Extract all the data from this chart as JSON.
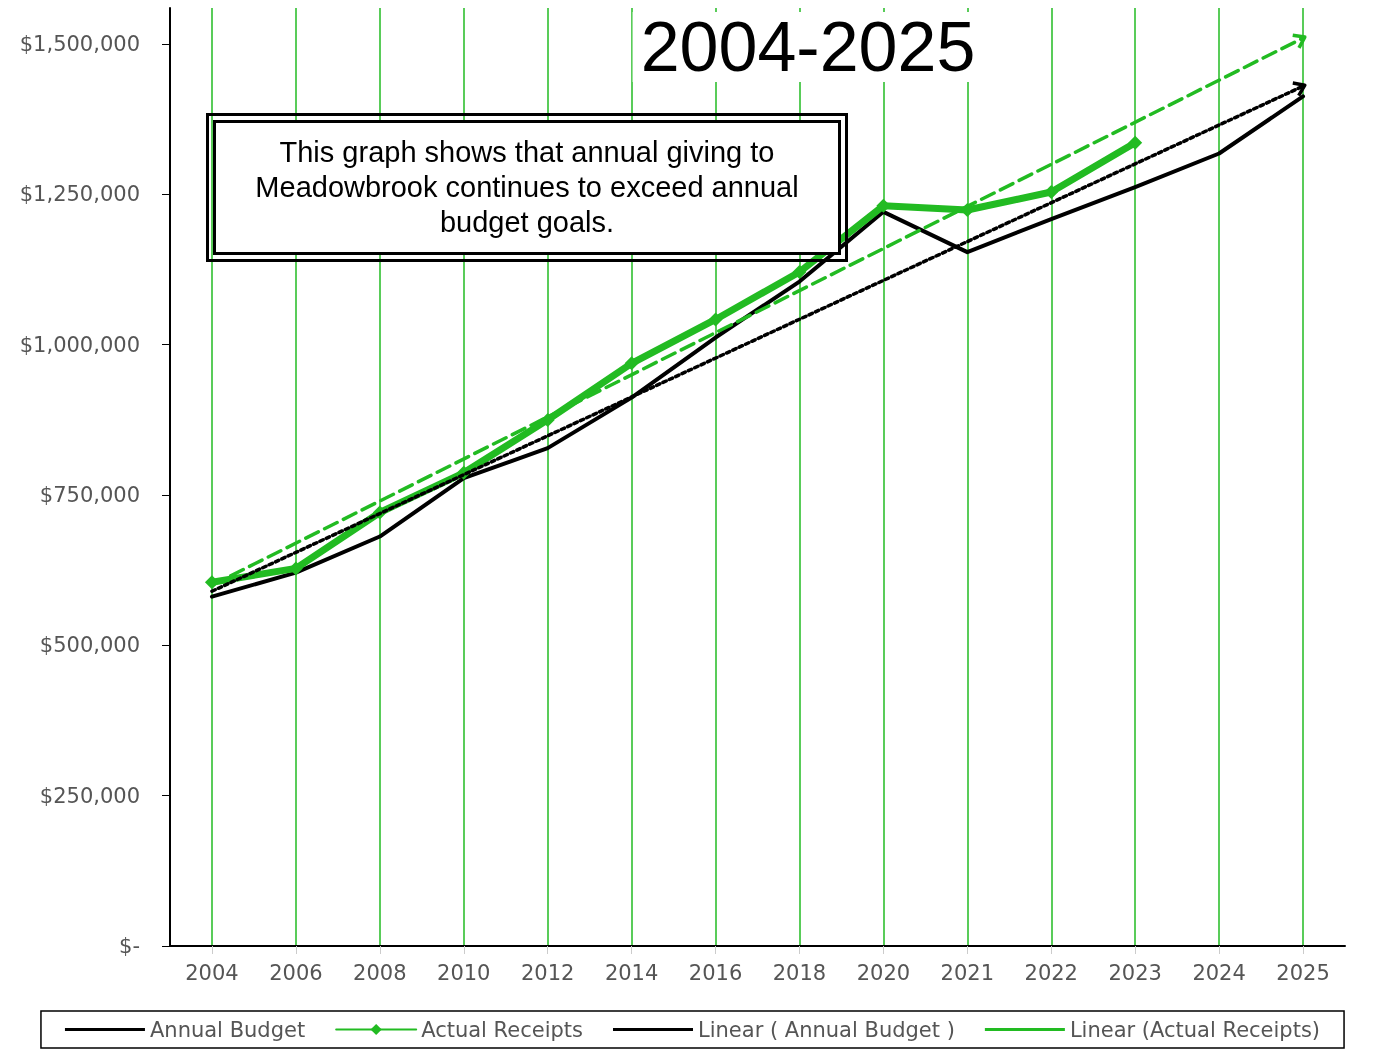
{
  "chart_data": {
    "type": "line",
    "title": "2004-2025",
    "annotations": [
      "This graph shows that annual giving to Meadowbrook continues to exceed annual budget goals."
    ],
    "categories": [
      "2004",
      "2006",
      "2008",
      "2010",
      "2012",
      "2014",
      "2016",
      "2018",
      "2020",
      "2021",
      "2022",
      "2023",
      "2024",
      "2025"
    ],
    "series": [
      {
        "name": "Annual Budget",
        "color": "#000000",
        "line_style": "solid",
        "values": [
          581000,
          621000,
          681000,
          778000,
          828000,
          912000,
          1012000,
          1105000,
          1221000,
          1154000,
          1209000,
          1262000,
          1318000,
          1413000
        ]
      },
      {
        "name": "Actual Receipts",
        "color": "#22bb22",
        "line_style": "solid",
        "marker": "diamond",
        "values": [
          605000,
          628000,
          721000,
          787000,
          875000,
          969000,
          1042000,
          1121000,
          1231000,
          1224000,
          1254000,
          1336000,
          null,
          null
        ]
      },
      {
        "name": "Linear ( Annual Budget )",
        "color": "#000000",
        "line_style": "dotted",
        "values": [
          590000,
          null,
          null,
          null,
          null,
          null,
          null,
          null,
          null,
          null,
          null,
          null,
          null,
          1430000
        ]
      },
      {
        "name": "Linear (Actual Receipts)",
        "color": "#22bb22",
        "line_style": "dashed",
        "values": [
          600000,
          null,
          null,
          null,
          null,
          null,
          null,
          null,
          null,
          null,
          null,
          null,
          null,
          1510000
        ]
      }
    ],
    "ylim": [
      0,
      1560000
    ],
    "yticks": [
      {
        "value": 0,
        "label": "$-"
      },
      {
        "value": 250000,
        "label": "$250,000"
      },
      {
        "value": 500000,
        "label": "$500,000"
      },
      {
        "value": 750000,
        "label": "$750,000"
      },
      {
        "value": 1000000,
        "label": "$1,000,000"
      },
      {
        "value": 1250000,
        "label": "$1,250,000"
      },
      {
        "value": 1500000,
        "label": "$1,500,000"
      }
    ],
    "grid": "x",
    "legend": "bottom"
  }
}
